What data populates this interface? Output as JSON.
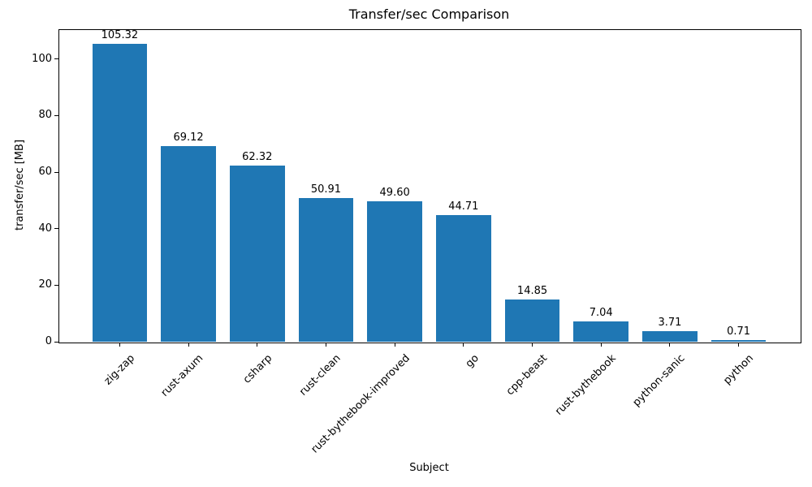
{
  "chart_data": {
    "type": "bar",
    "title": "Transfer/sec Comparison",
    "xlabel": "Subject",
    "ylabel": "transfer/sec [MB]",
    "categories": [
      "zig-zap",
      "rust-axum",
      "csharp",
      "rust-clean",
      "rust-bythebook-improved",
      "go",
      "cpp-beast",
      "rust-bythebook",
      "python-sanic",
      "python"
    ],
    "values": [
      105.32,
      69.12,
      62.32,
      50.91,
      49.6,
      44.71,
      14.85,
      7.04,
      3.71,
      0.71
    ],
    "value_labels": [
      "105.32",
      "69.12",
      "62.32",
      "50.91",
      "49.60",
      "44.71",
      "14.85",
      "7.04",
      "3.71",
      "0.71"
    ],
    "yticks": [
      0,
      20,
      40,
      60,
      80,
      100
    ],
    "ylim": [
      0,
      110.59
    ],
    "xlim": [
      -0.89,
      9.89
    ],
    "bar_width_frac": 0.8,
    "bar_color": "#1f77b4",
    "text_color": "#000000",
    "grid": false,
    "legend": "none",
    "x_tick_rotation_deg": 45
  }
}
